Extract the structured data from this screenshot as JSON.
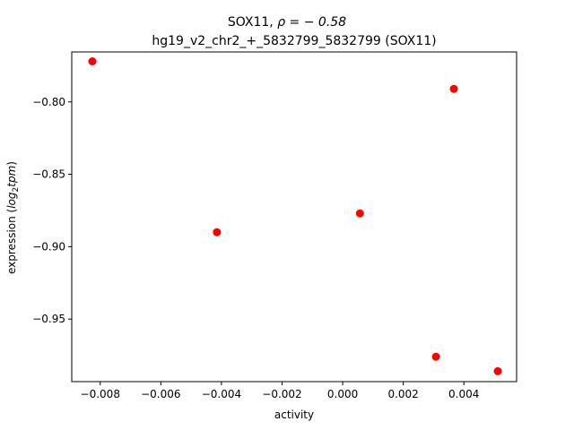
{
  "chart_data": {
    "type": "scatter",
    "title_line1": "SOX11, ",
    "title_rho": "ρ = − 0.58",
    "title_line2": "hg19_v2_chr2_+_5832799_5832799 (SOX11)",
    "xlabel": "activity",
    "ylabel_prefix": "expression (",
    "ylabel_log": "log",
    "ylabel_sub": "2",
    "ylabel_tpm": "tpm",
    "ylabel_suffix": ")",
    "xlim": [
      -0.00894,
      0.00574
    ],
    "ylim": [
      -0.9932,
      -0.7655
    ],
    "x_ticks": [
      {
        "value": -0.008,
        "label": "−0.008"
      },
      {
        "value": -0.006,
        "label": "−0.006"
      },
      {
        "value": -0.004,
        "label": "−0.004"
      },
      {
        "value": -0.002,
        "label": "−0.002"
      },
      {
        "value": 0.0,
        "label": "0.000"
      },
      {
        "value": 0.002,
        "label": "0.002"
      },
      {
        "value": 0.004,
        "label": "0.004"
      }
    ],
    "y_ticks": [
      {
        "value": -0.8,
        "label": "−0.80"
      },
      {
        "value": -0.85,
        "label": "−0.85"
      },
      {
        "value": -0.9,
        "label": "−0.90"
      },
      {
        "value": -0.95,
        "label": "−0.95"
      }
    ],
    "point_color": "#ff0000",
    "points": [
      {
        "x": -0.00826,
        "y": -0.772
      },
      {
        "x": -0.00415,
        "y": -0.89
      },
      {
        "x": 0.00057,
        "y": -0.877
      },
      {
        "x": 0.00367,
        "y": -0.791
      },
      {
        "x": 0.00308,
        "y": -0.976
      },
      {
        "x": 0.00512,
        "y": -0.986
      }
    ]
  }
}
